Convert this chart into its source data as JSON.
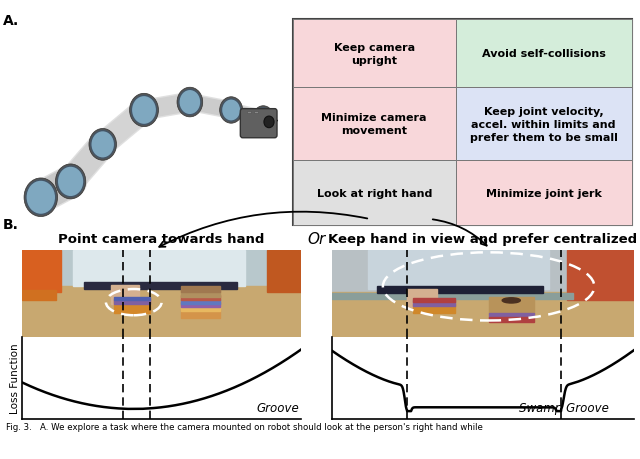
{
  "fig_width": 6.4,
  "fig_height": 4.6,
  "bg_color": "#ffffff",
  "label_A": "A.",
  "label_B": "B.",
  "cell_tl_color": "#f8d7da",
  "cell_ml_color": "#f8d7da",
  "cell_bl_color": "#e0e0e0",
  "cell_tr_color": "#d4edda",
  "cell_mr_color": "#dce3f5",
  "cell_br_color": "#f8d7da",
  "cell_tl_text": "Keep camera\nupright",
  "cell_ml_text": "Minimize camera\nmovement",
  "cell_bl_text": "Look at right hand",
  "cell_tr_text": "Avoid self-collisions",
  "cell_mr_text": "Keep joint velocity,\naccel. within limits and\nprefer them to be small",
  "cell_br_text": "Minimize joint jerk",
  "panel_b_left_title": "Point camera towards hand",
  "panel_b_left_title_bg": "#f8d7da",
  "panel_b_right_title": "Keep hand in view and prefer centralized",
  "panel_b_right_title_bg": "#dce3f5",
  "panel_b_or_text": "Or",
  "groove_label": "Groove",
  "swamp_label": "Swamp Groove",
  "loss_label": "Loss Function",
  "caption_text": "Fig. 3.   A. We explore a task where the camera mounted on robot should look at the person's right hand while"
}
